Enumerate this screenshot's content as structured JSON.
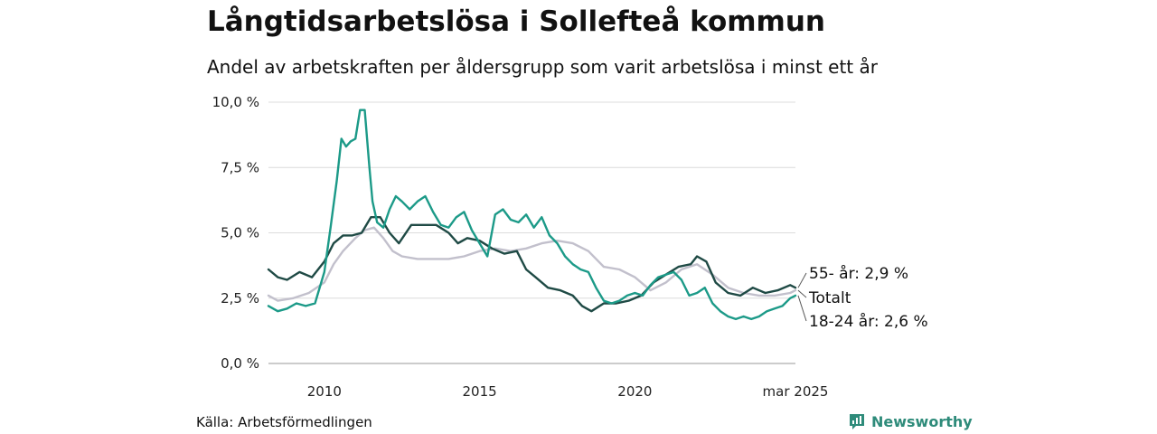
{
  "title": "Långtidsarbetslösa i Sollefteå kommun",
  "subtitle": "Andel av arbetskraften per åldersgrupp som varit arbetslösa i minst ett år",
  "source": "Källa: Arbetsförmedlingen",
  "brand": {
    "name": "Newsworthy",
    "icon": "newsworthy-logo-icon",
    "color": "#2e8b7a"
  },
  "chart_data": {
    "type": "line",
    "title": "Långtidsarbetslösa i Sollefteå kommun",
    "subtitle": "Andel av arbetskraften per åldersgrupp som varit arbetslösa i minst ett år",
    "x_range": [
      "2008-03",
      "2025-03"
    ],
    "ylim": [
      0,
      10
    ],
    "y_ticks": [
      "0,0 %",
      "2,5 %",
      "5,0 %",
      "7,5 %",
      "10,0 %"
    ],
    "y_tick_values": [
      0,
      2.5,
      5,
      7.5,
      10
    ],
    "x_ticks": [
      "2010",
      "2015",
      "2020",
      "mar 2025"
    ],
    "x_tick_values": [
      2010,
      2015,
      2020,
      2025.17
    ],
    "grid": "horizontal",
    "end_labels": [
      "55- år: 2,9 %",
      "Totalt",
      "18-24 år: 2,6 %"
    ],
    "series": [
      {
        "name": "Totalt",
        "color": "#c2c0cc",
        "x": [
          2008.2,
          2008.5,
          2009.0,
          2009.5,
          2010.0,
          2010.3,
          2010.6,
          2011.0,
          2011.3,
          2011.6,
          2011.9,
          2012.2,
          2012.5,
          2013.0,
          2013.5,
          2014.0,
          2014.5,
          2015.0,
          2015.5,
          2016.0,
          2016.5,
          2017.0,
          2017.5,
          2018.0,
          2018.5,
          2019.0,
          2019.5,
          2020.0,
          2020.5,
          2021.0,
          2021.5,
          2022.0,
          2022.5,
          2023.0,
          2023.5,
          2024.0,
          2024.5,
          2025.0,
          2025.17
        ],
        "values": [
          2.6,
          2.4,
          2.5,
          2.7,
          3.1,
          3.8,
          4.3,
          4.8,
          5.1,
          5.2,
          4.8,
          4.3,
          4.1,
          4.0,
          4.0,
          4.0,
          4.1,
          4.3,
          4.4,
          4.3,
          4.4,
          4.6,
          4.7,
          4.6,
          4.3,
          3.7,
          3.6,
          3.3,
          2.8,
          3.1,
          3.6,
          3.8,
          3.4,
          2.9,
          2.7,
          2.6,
          2.6,
          2.7,
          2.8
        ]
      },
      {
        "name": "55- år",
        "color": "#1f4a45",
        "x": [
          2008.2,
          2008.5,
          2008.8,
          2009.2,
          2009.6,
          2010.0,
          2010.3,
          2010.6,
          2010.9,
          2011.2,
          2011.5,
          2011.8,
          2012.1,
          2012.4,
          2012.8,
          2013.2,
          2013.6,
          2014.0,
          2014.3,
          2014.6,
          2015.0,
          2015.4,
          2015.8,
          2016.2,
          2016.5,
          2016.8,
          2017.2,
          2017.6,
          2018.0,
          2018.3,
          2018.6,
          2019.0,
          2019.4,
          2019.8,
          2020.2,
          2020.6,
          2021.0,
          2021.4,
          2021.8,
          2022.0,
          2022.3,
          2022.6,
          2023.0,
          2023.4,
          2023.8,
          2024.2,
          2024.6,
          2025.0,
          2025.17
        ],
        "values": [
          3.6,
          3.3,
          3.2,
          3.5,
          3.3,
          3.9,
          4.6,
          4.9,
          4.9,
          5.0,
          5.6,
          5.6,
          5.0,
          4.6,
          5.3,
          5.3,
          5.3,
          5.0,
          4.6,
          4.8,
          4.7,
          4.4,
          4.2,
          4.3,
          3.6,
          3.3,
          2.9,
          2.8,
          2.6,
          2.2,
          2.0,
          2.3,
          2.3,
          2.4,
          2.6,
          3.1,
          3.4,
          3.7,
          3.8,
          4.1,
          3.9,
          3.1,
          2.7,
          2.6,
          2.9,
          2.7,
          2.8,
          3.0,
          2.9
        ]
      },
      {
        "name": "18-24 år",
        "color": "#1c9a88",
        "x": [
          2008.2,
          2008.5,
          2008.8,
          2009.1,
          2009.4,
          2009.7,
          2010.0,
          2010.2,
          2010.4,
          2010.55,
          2010.7,
          2010.85,
          2011.0,
          2011.15,
          2011.3,
          2011.45,
          2011.55,
          2011.7,
          2011.9,
          2012.1,
          2012.3,
          2012.5,
          2012.75,
          2013.0,
          2013.25,
          2013.5,
          2013.75,
          2014.0,
          2014.25,
          2014.5,
          2014.75,
          2015.0,
          2015.25,
          2015.5,
          2015.75,
          2016.0,
          2016.25,
          2016.5,
          2016.75,
          2017.0,
          2017.25,
          2017.5,
          2017.75,
          2018.0,
          2018.25,
          2018.5,
          2018.75,
          2019.0,
          2019.25,
          2019.5,
          2019.75,
          2020.0,
          2020.25,
          2020.5,
          2020.75,
          2021.0,
          2021.25,
          2021.5,
          2021.75,
          2022.0,
          2022.25,
          2022.5,
          2022.75,
          2023.0,
          2023.25,
          2023.5,
          2023.75,
          2024.0,
          2024.25,
          2024.5,
          2024.75,
          2025.0,
          2025.17
        ],
        "values": [
          2.2,
          2.0,
          2.1,
          2.3,
          2.2,
          2.3,
          3.5,
          5.2,
          7.0,
          8.6,
          8.3,
          8.5,
          8.6,
          9.7,
          9.7,
          7.5,
          6.2,
          5.4,
          5.2,
          5.9,
          6.4,
          6.2,
          5.9,
          6.2,
          6.4,
          5.8,
          5.3,
          5.2,
          5.6,
          5.8,
          5.1,
          4.6,
          4.1,
          5.7,
          5.9,
          5.5,
          5.4,
          5.7,
          5.2,
          5.6,
          4.9,
          4.6,
          4.1,
          3.8,
          3.6,
          3.5,
          2.9,
          2.4,
          2.3,
          2.4,
          2.6,
          2.7,
          2.6,
          3.0,
          3.3,
          3.4,
          3.5,
          3.2,
          2.6,
          2.7,
          2.9,
          2.3,
          2.0,
          1.8,
          1.7,
          1.8,
          1.7,
          1.8,
          2.0,
          2.1,
          2.2,
          2.5,
          2.6
        ]
      }
    ]
  }
}
